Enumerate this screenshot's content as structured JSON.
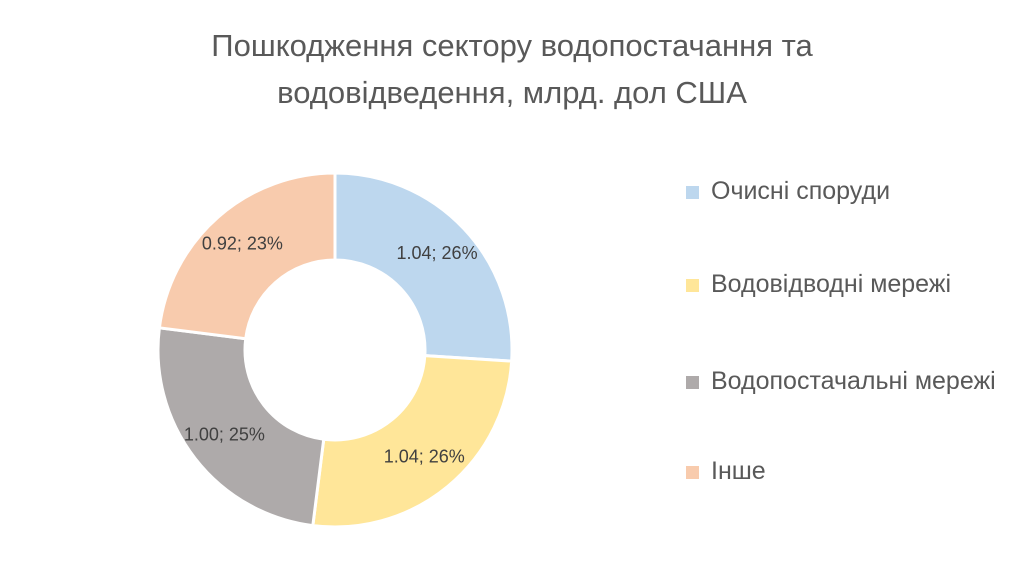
{
  "chart_data": {
    "type": "donut",
    "title_lines": [
      "Пошкодження сектору водопостачання та",
      "водовідведення, млрд. дол США"
    ],
    "series": [
      {
        "name": "Очисні споруди",
        "value": 1.04,
        "percent": 26,
        "label": "1.04; 26%",
        "color": "#BDD7EE"
      },
      {
        "name": "Водовідводні мережі",
        "value": 1.04,
        "percent": 26,
        "label": "1.04; 26%",
        "color": "#FFE699"
      },
      {
        "name": "Водопостачальні мережі",
        "value": 1.0,
        "percent": 25,
        "label": "1.00; 25%",
        "color": "#AEAAAA"
      },
      {
        "name": "Інше",
        "value": 0.92,
        "percent": 23,
        "label": "0.92; 23%",
        "color": "#F8CBAD"
      }
    ],
    "legend_position": "right",
    "start_angle": "top, clockwise"
  }
}
